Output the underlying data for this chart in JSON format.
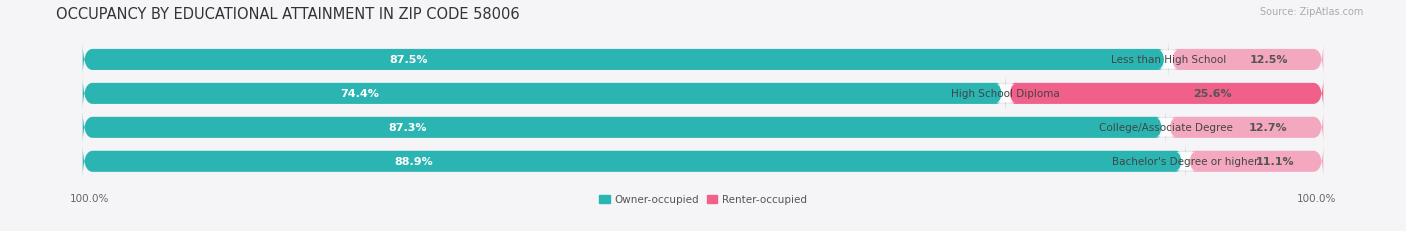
{
  "title": "OCCUPANCY BY EDUCATIONAL ATTAINMENT IN ZIP CODE 58006",
  "source": "Source: ZipAtlas.com",
  "categories": [
    "Less than High School",
    "High School Diploma",
    "College/Associate Degree",
    "Bachelor's Degree or higher"
  ],
  "owner_values": [
    87.5,
    74.4,
    87.3,
    88.9
  ],
  "renter_values": [
    12.5,
    25.6,
    12.7,
    11.1
  ],
  "owner_color": "#2ab5b2",
  "renter_colors": [
    "#f4a8c0",
    "#f0608a",
    "#f4a8c0",
    "#f4a8c0"
  ],
  "bg_color": "#e8e8ee",
  "owner_label": "Owner-occupied",
  "renter_label": "Renter-occupied",
  "title_fontsize": 10.5,
  "source_fontsize": 7,
  "bar_label_fontsize": 8,
  "category_fontsize": 7.5,
  "legend_fontsize": 7.5,
  "figure_bg": "#f5f5f7",
  "label_box_color": "white",
  "percent_label_color_owner": "white",
  "percent_label_color_renter": "#555555",
  "category_label_color": "#444444"
}
